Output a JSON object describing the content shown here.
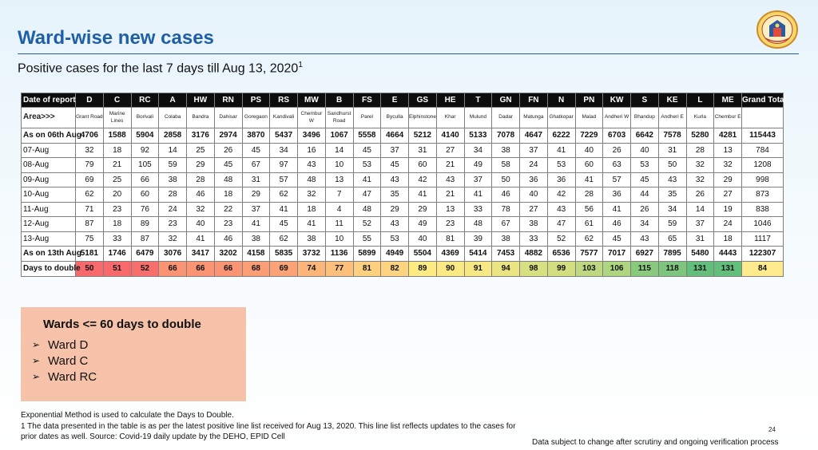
{
  "slide": {
    "title": "Ward-wise new cases",
    "subtitle": "Positive cases for the last 7 days till Aug 13, 2020",
    "subtitle_sup": "1",
    "page_number": "24",
    "disclaimer": "Data subject to change after scrutiny and ongoing verification process"
  },
  "table": {
    "header_label": "Date of report",
    "area_label": "Area>>>",
    "total_label": "Grand Total",
    "wards": [
      "D",
      "C",
      "RC",
      "A",
      "HW",
      "RN",
      "PS",
      "RS",
      "MW",
      "B",
      "FS",
      "E",
      "GS",
      "HE",
      "T",
      "GN",
      "FN",
      "N",
      "PN",
      "KW",
      "S",
      "KE",
      "L",
      "ME"
    ],
    "areas": [
      "Grant Road",
      "Marine Lines",
      "Borivali",
      "Colaba",
      "Bandra",
      "Dahisar",
      "Goregaon",
      "Kandivali",
      "Chembur W",
      "Sandhurst Road",
      "Parel",
      "Byculla",
      "Elphinstone",
      "Khar",
      "Mulund",
      "Dadar",
      "Matunga",
      "Ghatkopar",
      "Malad",
      "Andheri W",
      "Bhandup",
      "Andheri E",
      "Kurla",
      "Chembur E"
    ],
    "rows": [
      {
        "label": "As on 06th Aug",
        "bold": true,
        "values": [
          4706,
          1588,
          5904,
          2858,
          3176,
          2974,
          3870,
          5437,
          3496,
          1067,
          5558,
          4664,
          5212,
          4140,
          5133,
          7078,
          4647,
          6222,
          7229,
          6703,
          6642,
          7578,
          5280,
          4281
        ],
        "total": 115443
      },
      {
        "label": "07-Aug",
        "bold": false,
        "values": [
          32,
          18,
          92,
          14,
          25,
          26,
          45,
          34,
          16,
          14,
          45,
          37,
          31,
          27,
          34,
          38,
          37,
          41,
          40,
          26,
          40,
          31,
          28,
          13
        ],
        "total": 784
      },
      {
        "label": "08-Aug",
        "bold": false,
        "values": [
          79,
          21,
          105,
          59,
          29,
          45,
          67,
          97,
          43,
          10,
          53,
          45,
          60,
          21,
          49,
          58,
          24,
          53,
          60,
          63,
          53,
          50,
          32,
          32
        ],
        "total": 1208
      },
      {
        "label": "09-Aug",
        "bold": false,
        "values": [
          69,
          25,
          66,
          38,
          28,
          48,
          31,
          57,
          48,
          13,
          41,
          43,
          42,
          43,
          37,
          50,
          36,
          36,
          41,
          57,
          45,
          43,
          32,
          29
        ],
        "total": 998
      },
      {
        "label": "10-Aug",
        "bold": false,
        "values": [
          62,
          20,
          60,
          28,
          46,
          18,
          29,
          62,
          32,
          7,
          47,
          35,
          41,
          21,
          41,
          46,
          40,
          42,
          28,
          36,
          44,
          35,
          26,
          27
        ],
        "total": 873
      },
      {
        "label": "11-Aug",
        "bold": false,
        "values": [
          71,
          23,
          76,
          24,
          32,
          22,
          37,
          41,
          18,
          4,
          48,
          29,
          29,
          13,
          33,
          78,
          27,
          43,
          56,
          41,
          26,
          34,
          14,
          19
        ],
        "total": 838
      },
      {
        "label": "12-Aug",
        "bold": false,
        "values": [
          87,
          18,
          89,
          23,
          40,
          23,
          41,
          45,
          41,
          11,
          52,
          43,
          49,
          23,
          48,
          67,
          38,
          47,
          61,
          46,
          34,
          59,
          37,
          24
        ],
        "total": 1046
      },
      {
        "label": "13-Aug",
        "bold": false,
        "values": [
          75,
          33,
          87,
          32,
          41,
          46,
          38,
          62,
          38,
          10,
          55,
          53,
          40,
          81,
          39,
          38,
          33,
          52,
          62,
          45,
          43,
          65,
          31,
          18
        ],
        "total": 1117
      },
      {
        "label": "As on 13th Aug",
        "bold": true,
        "values": [
          5181,
          1746,
          6479,
          3076,
          3417,
          3202,
          4158,
          5835,
          3732,
          1136,
          5899,
          4949,
          5504,
          4369,
          5414,
          7453,
          4882,
          6536,
          7577,
          7017,
          6927,
          7895,
          5480,
          4443
        ],
        "total": 122307
      }
    ],
    "days_to_double": {
      "label": "Days to double",
      "values": [
        50,
        51,
        52,
        66,
        66,
        66,
        68,
        69,
        74,
        77,
        81,
        82,
        89,
        90,
        91,
        94,
        98,
        99,
        103,
        106,
        115,
        118,
        131,
        131
      ],
      "total": 84,
      "colors": [
        "#f8696b",
        "#f8696b",
        "#f86e6c",
        "#fa9473",
        "#fa9473",
        "#fa9473",
        "#fb9d75",
        "#fba276",
        "#fcb679",
        "#fdc07c",
        "#fdd07f",
        "#fed480",
        "#ffeb84",
        "#fbe983",
        "#f7e883",
        "#ebe482",
        "#d8df81",
        "#d3de81",
        "#bdd881",
        "#aed580",
        "#8aca7e",
        "#7ec67d",
        "#63be7b",
        "#63be7b"
      ],
      "total_color": "#fdeb8e"
    }
  },
  "callout": {
    "title": "Wards <= 60 days to double",
    "items": [
      "Ward D",
      "Ward C",
      "Ward RC"
    ]
  },
  "footnotes": {
    "method": "Exponential Method is used to calculate the Days to Double.",
    "note1": "1 The data presented in the table is as per the latest positive line list received for Aug 13, 2020. This line list reflects updates to the cases for prior dates as well. Source: Covid-19 daily update by the DEHO, EPID Cell"
  }
}
